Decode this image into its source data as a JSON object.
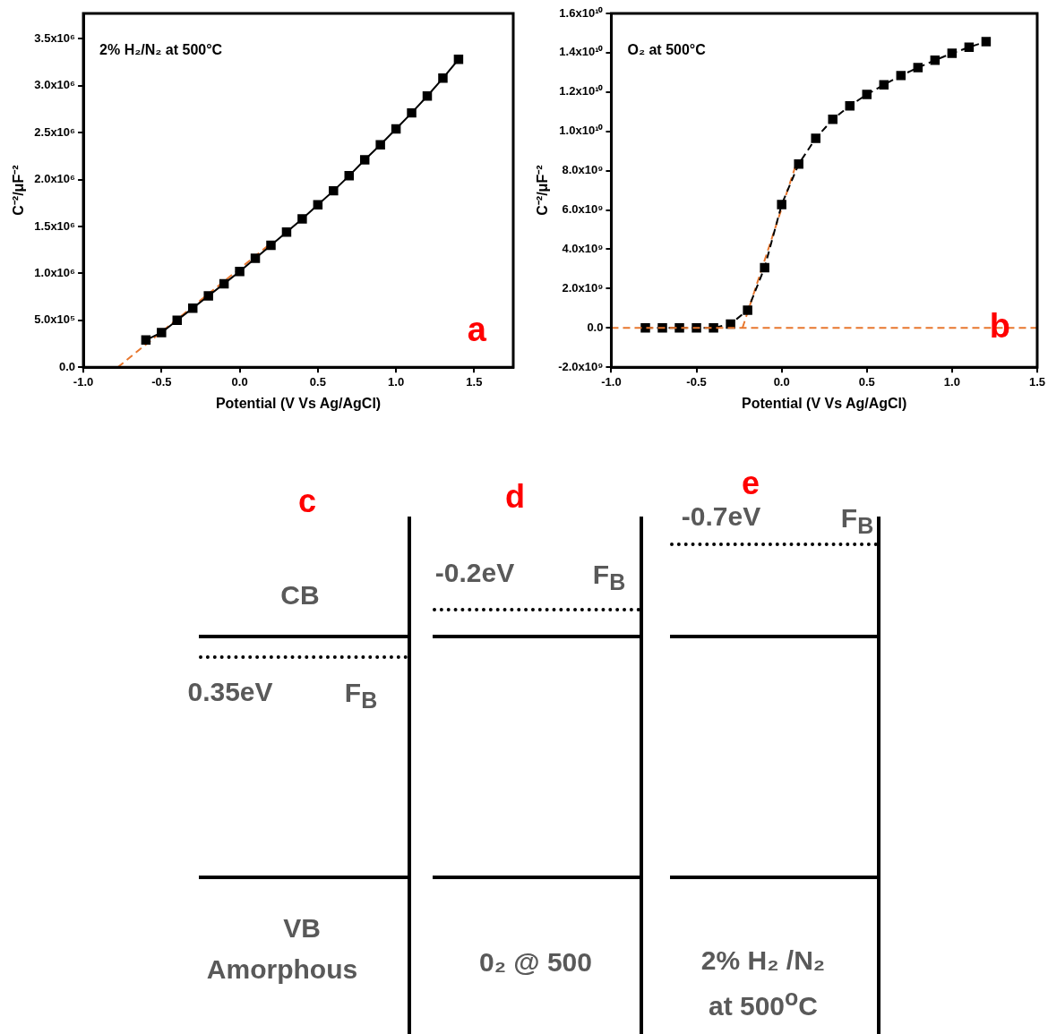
{
  "chart_data": [
    {
      "type": "line",
      "xlabel": "Potential (V Vs Ag/AgCl)",
      "ylabel": "C⁻²/μF⁻²",
      "annotations": [
        "2% H₂/N₂ at 500°C",
        "a"
      ],
      "xlim": [
        -1.0,
        1.75
      ],
      "xticks": [
        {
          "value": -1,
          "label": "-1.0"
        },
        -0.5,
        {
          "value": 0,
          "label": "0.0"
        },
        0.5,
        {
          "value": 1,
          "label": "1.0"
        },
        1.5
      ],
      "ylim": [
        0,
        3770000
      ],
      "yticks": [
        {
          "value": 0,
          "label": "0.0"
        },
        {
          "value": 500000,
          "label": "5.0x10⁵"
        },
        {
          "value": 1000000,
          "label": "1.0x10⁶"
        },
        {
          "value": 1500000,
          "label": "1.5x10⁶"
        },
        {
          "value": 2000000,
          "label": "2.0x10⁶"
        },
        {
          "value": 2500000,
          "label": "2.5x10⁶"
        },
        {
          "value": 3000000,
          "label": "3.0x10⁶"
        },
        {
          "value": 3500000,
          "label": "3.5x10⁶"
        }
      ],
      "grid": false,
      "legend": false,
      "series": [
        {
          "color": "#000000",
          "marker": "square",
          "line_style": "solid",
          "x": [
            -0.6,
            -0.5,
            -0.4,
            -0.3,
            -0.2,
            -0.1,
            0,
            0.1,
            0.2,
            0.3,
            0.4,
            0.5,
            0.6,
            0.7,
            0.8,
            0.9,
            1.0,
            1.1,
            1.2,
            1.3,
            1.4
          ],
          "values": [
            290000,
            370000,
            500000,
            630000,
            760000,
            890000,
            1020000,
            1160000,
            1300000,
            1440000,
            1580000,
            1730000,
            1880000,
            2040000,
            2210000,
            2370000,
            2540000,
            2710000,
            2890000,
            3080000,
            3280000
          ]
        },
        {
          "color": "#e8772e",
          "marker": "none",
          "line_style": "dashed",
          "x": [
            -0.78,
            0.2
          ],
          "values": [
            0,
            1320000
          ]
        }
      ]
    },
    {
      "type": "line",
      "xlabel": "Potential (V Vs Ag/AgCl)",
      "ylabel": "C⁻²/μF⁻²",
      "annotations": [
        "O₂ at 500°C",
        "b"
      ],
      "xlim": [
        -1.0,
        1.5
      ],
      "xticks": [
        {
          "value": -1,
          "label": "-1.0"
        },
        -0.5,
        {
          "value": 0,
          "label": "0.0"
        },
        0.5,
        {
          "value": 1,
          "label": "1.0"
        },
        1.5
      ],
      "ylim": [
        -2000000000,
        16000000000
      ],
      "yticks": [
        {
          "value": -2000000000,
          "label": "-2.0x10⁹"
        },
        {
          "value": 0,
          "label": "0.0"
        },
        {
          "value": 2000000000,
          "label": "2.0x10⁹"
        },
        {
          "value": 4000000000,
          "label": "4.0x10⁹"
        },
        {
          "value": 6000000000,
          "label": "6.0x10⁹"
        },
        {
          "value": 8000000000,
          "label": "8.0x10⁹"
        },
        {
          "value": 10000000000,
          "label": "1.0x10¹⁰"
        },
        {
          "value": 12000000000,
          "label": "1.2x10¹⁰"
        },
        {
          "value": 14000000000,
          "label": "1.4x10¹⁰"
        },
        {
          "value": 16000000000,
          "label": "1.6x10¹⁰"
        }
      ],
      "grid": false,
      "legend": false,
      "ref_lines": [
        {
          "axis": "y",
          "value": 0,
          "color": "#e8772e",
          "line_style": "dashed"
        }
      ],
      "series": [
        {
          "color": "#000000",
          "marker": "square",
          "line_style": "dashed",
          "x": [
            -0.8,
            -0.7,
            -0.6,
            -0.5,
            -0.4,
            -0.3,
            -0.2,
            -0.1,
            0,
            0.1,
            0.2,
            0.3,
            0.4,
            0.5,
            0.6,
            0.7,
            0.8,
            0.9,
            1.0,
            1.1,
            1.2
          ],
          "values": [
            0,
            0,
            0,
            0,
            0,
            200000000,
            900000000,
            3070000000,
            6280000000,
            8340000000,
            9650000000,
            10610000000,
            11300000000,
            11880000000,
            12370000000,
            12840000000,
            13240000000,
            13620000000,
            13970000000,
            14280000000,
            14570000000
          ]
        },
        {
          "color": "#e8772e",
          "marker": "none",
          "line_style": "dashed",
          "x": [
            -0.23,
            0.08
          ],
          "values": [
            0,
            8200000000
          ]
        }
      ]
    },
    {
      "type": "other",
      "annotations": [
        "c",
        "d",
        "e",
        "CB",
        "0.35eV",
        "F$_{B}$",
        "-0.2eV",
        "F$_{B}$",
        "-0.7eV",
        "F$_{B}$",
        "VB",
        "Amorphous",
        "0₂ @ 500",
        "2% H₂ /N₂",
        "at 500$^{o}$C"
      ]
    }
  ]
}
